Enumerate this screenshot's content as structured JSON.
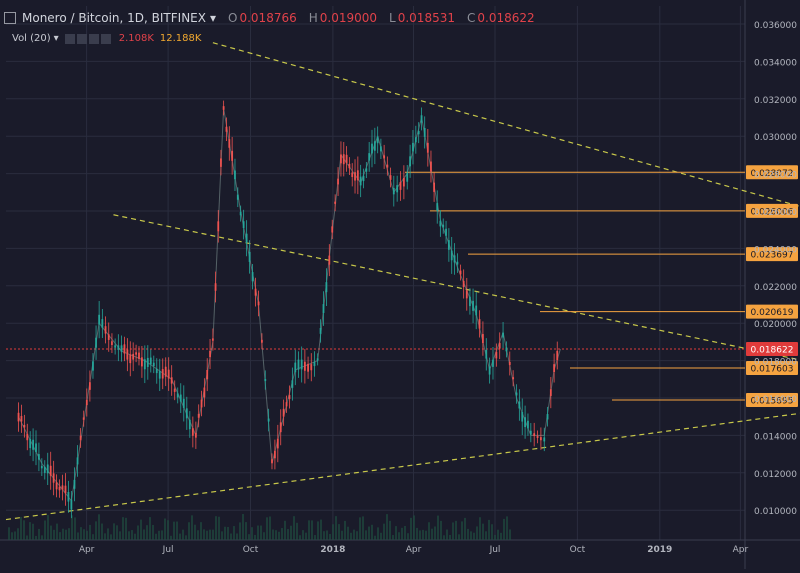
{
  "header": {
    "symbol": "Monero / Bitcoin, 1D, BITFINEX",
    "open_label": "O",
    "open": "0.018766",
    "high_label": "H",
    "high": "0.019000",
    "low_label": "L",
    "low": "0.018531",
    "close_label": "C",
    "close": "0.018622"
  },
  "volume": {
    "label": "Vol (20)",
    "value_red": "2.108K",
    "value_orange": "12.188K"
  },
  "colors": {
    "background": "#1a1b2a",
    "grid": "#2a2d3e",
    "candle_up": "#26a69a",
    "candle_down": "#ef5350",
    "trendline": "#c8c84a",
    "level": "#f5a340",
    "price_tag": "#e03b3b",
    "axis_text": "#b2b5be"
  },
  "chart_data": {
    "type": "line",
    "title": "Monero / Bitcoin, 1D, BITFINEX",
    "x_tick_labels": [
      "Apr",
      "Jul",
      "Oct",
      "2018",
      "Apr",
      "Jul",
      "Oct",
      "2019",
      "Apr"
    ],
    "y_tick_labels": [
      "0.036000",
      "0.034000",
      "0.032000",
      "0.030000",
      "0.028000",
      "0.026000",
      "0.024000",
      "0.022000",
      "0.020000",
      "0.018000",
      "0.016000",
      "0.014000",
      "0.012000",
      "0.010000"
    ],
    "ylim": [
      0.0082,
      0.0375
    ],
    "grid": true,
    "series": [
      {
        "x": [
          "2017-01-15",
          "2017-02-10",
          "2017-03-15",
          "2017-04-15",
          "2017-05-10",
          "2017-06-05",
          "2017-07-05",
          "2017-08-01",
          "2017-08-20",
          "2017-09-01",
          "2017-09-20",
          "2017-10-10",
          "2017-10-25",
          "2017-11-20",
          "2017-12-15",
          "2018-01-10",
          "2018-02-01",
          "2018-02-20",
          "2018-03-10",
          "2018-03-25",
          "2018-04-10",
          "2018-05-01",
          "2018-05-20",
          "2018-06-10",
          "2018-06-25",
          "2018-07-10",
          "2018-07-25",
          "2018-08-10",
          "2018-08-25",
          "2018-09-05",
          "2018-09-12"
        ],
        "values": [
          0.015,
          0.0125,
          0.0105,
          0.02,
          0.0185,
          0.018,
          0.017,
          0.014,
          0.019,
          0.0315,
          0.026,
          0.021,
          0.0125,
          0.0175,
          0.018,
          0.029,
          0.0275,
          0.03,
          0.027,
          0.028,
          0.031,
          0.0255,
          0.023,
          0.0205,
          0.0175,
          0.0195,
          0.016,
          0.014,
          0.014,
          0.0175,
          0.01862
        ]
      }
    ],
    "last_price": 0.018622,
    "horizontal_levels": [
      "0.028072",
      "0.026006",
      "0.023697",
      "0.020619",
      "0.017603",
      "0.015895"
    ],
    "trendlines": [
      {
        "from": {
          "x": "2017-08-20",
          "y": 0.035
        },
        "to": {
          "x": "2019-06-10",
          "y": 0.0262
        }
      },
      {
        "from": {
          "x": "2017-05-01",
          "y": 0.0258
        },
        "to": {
          "x": "2019-06-10",
          "y": 0.018
        }
      },
      {
        "from": {
          "x": "2017-01-01",
          "y": 0.0095
        },
        "to": {
          "x": "2019-06-10",
          "y": 0.0152
        }
      }
    ]
  }
}
